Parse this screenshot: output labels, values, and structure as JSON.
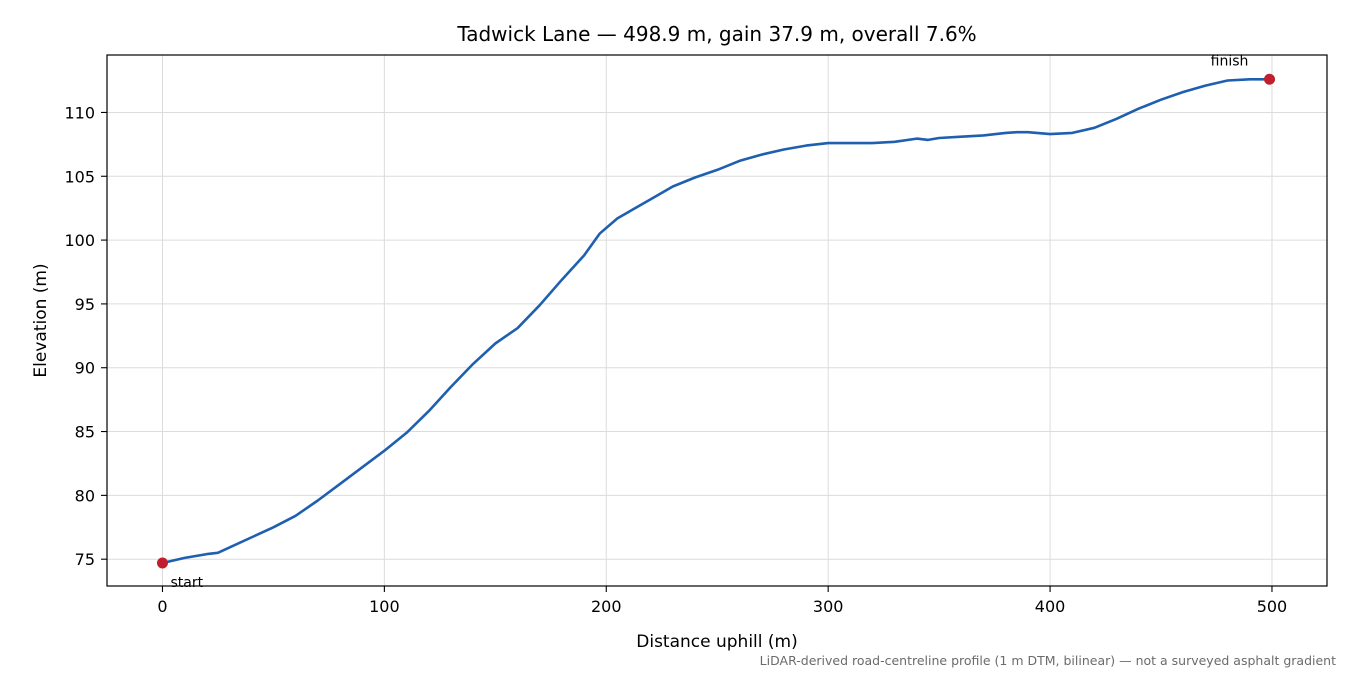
{
  "chart_data": {
    "type": "line",
    "title": "Tadwick Lane — 498.9 m, gain 37.9 m, overall 7.6%",
    "xlabel": "Distance uphill (m)",
    "ylabel": "Elevation (m)",
    "xlim": [
      -25,
      524.8
    ],
    "ylim": [
      72.9,
      114.5
    ],
    "xticks": [
      0,
      100,
      200,
      300,
      400,
      500
    ],
    "yticks": [
      75,
      80,
      85,
      90,
      95,
      100,
      105,
      110
    ],
    "grid": true,
    "series": [
      {
        "color": "#1f5fb0",
        "x": [
          0,
          10,
          20,
          25,
          30,
          40,
          50,
          60,
          70,
          80,
          90,
          100,
          110,
          120,
          130,
          140,
          150,
          155,
          160,
          170,
          180,
          190,
          197,
          205,
          210,
          220,
          230,
          240,
          250,
          260,
          270,
          280,
          290,
          300,
          310,
          320,
          330,
          340,
          345,
          350,
          360,
          370,
          380,
          385,
          390,
          400,
          410,
          420,
          430,
          440,
          450,
          460,
          470,
          480,
          490,
          498.9
        ],
        "y": [
          74.7,
          75.1,
          75.4,
          75.5,
          75.9,
          76.7,
          77.5,
          78.4,
          79.6,
          80.9,
          82.2,
          83.5,
          84.9,
          86.6,
          88.5,
          90.3,
          91.9,
          92.5,
          93.1,
          94.9,
          96.9,
          98.8,
          100.5,
          101.7,
          102.2,
          103.2,
          104.2,
          104.9,
          105.5,
          106.2,
          106.7,
          107.1,
          107.4,
          107.6,
          107.6,
          107.6,
          107.7,
          107.95,
          107.85,
          108.0,
          108.1,
          108.2,
          108.4,
          108.45,
          108.45,
          108.3,
          108.4,
          108.8,
          109.5,
          110.3,
          111.0,
          111.6,
          112.1,
          112.5,
          112.6,
          112.6
        ]
      }
    ],
    "markers": [
      {
        "x": 0,
        "y": 74.7,
        "label": "start",
        "color": "#c01f2d"
      },
      {
        "x": 498.9,
        "y": 112.6,
        "label": "finish",
        "color": "#c01f2d"
      }
    ],
    "footnote": "LiDAR-derived road-centreline profile (1 m DTM, bilinear) — not a surveyed asphalt gradient"
  }
}
